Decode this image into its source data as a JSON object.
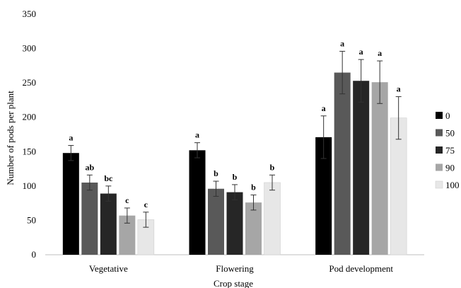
{
  "chart_data": {
    "type": "bar",
    "title": "",
    "xlabel": "Crop stage",
    "ylabel": "Number of pods per plant",
    "ylim": [
      0,
      350
    ],
    "yticks": [
      0,
      50,
      100,
      150,
      200,
      250,
      300,
      350
    ],
    "grid": false,
    "legend_position": "right",
    "categories": [
      "Vegetative",
      "Flowering",
      "Pod development"
    ],
    "series": [
      {
        "name": "0",
        "color": "#000000",
        "values": [
          148,
          152,
          171
        ],
        "errors": [
          11,
          11,
          31
        ],
        "letters": [
          "a",
          "a",
          "a"
        ]
      },
      {
        "name": "50",
        "color": "#595959",
        "values": [
          105,
          96,
          265
        ],
        "errors": [
          11,
          11,
          31
        ],
        "letters": [
          "ab",
          "b",
          "a"
        ]
      },
      {
        "name": "75",
        "color": "#262626",
        "values": [
          89,
          91,
          253
        ],
        "errors": [
          11,
          11,
          31
        ],
        "letters": [
          "bc",
          "b",
          "a"
        ]
      },
      {
        "name": "90",
        "color": "#a6a6a6",
        "values": [
          57,
          76,
          251
        ],
        "errors": [
          11,
          11,
          31
        ],
        "letters": [
          "c",
          "b",
          "a"
        ]
      },
      {
        "name": "100",
        "color": "#e7e7e7",
        "values": [
          51,
          105,
          199
        ],
        "errors": [
          11,
          11,
          31
        ],
        "letters": [
          "c",
          "b",
          "a"
        ]
      }
    ]
  }
}
